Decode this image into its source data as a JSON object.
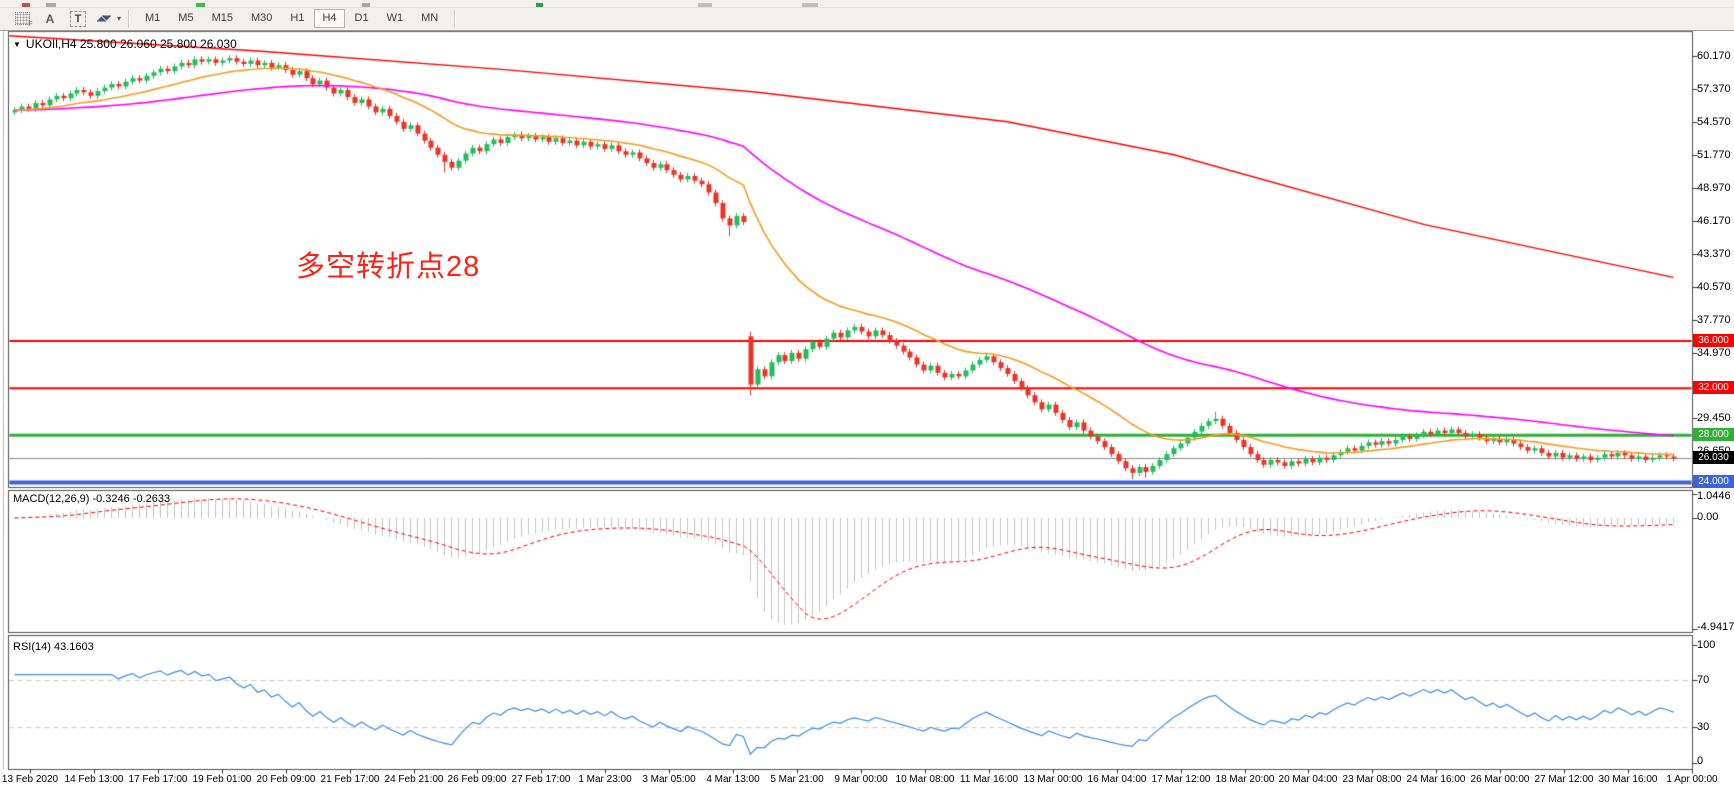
{
  "toolbar": {
    "icons": [
      {
        "name": "grid-f-icon",
        "label": "F"
      },
      {
        "name": "font-a-icon",
        "label": "A"
      },
      {
        "name": "text-label-icon",
        "label": "T"
      },
      {
        "name": "arrange-arrows-icon",
        "label": ""
      }
    ],
    "timeframes": [
      "M1",
      "M5",
      "M15",
      "M30",
      "H1",
      "H4",
      "D1",
      "W1",
      "MN"
    ],
    "active_timeframe": "H4"
  },
  "chart": {
    "title": "UKOIl,H4 25.800 26.060 25.800 26.030",
    "symbol": "UKOIl",
    "timeframe": "H4",
    "ohlc": {
      "open": "25.800",
      "high": "26.060",
      "low": "25.800",
      "close": "26.030"
    },
    "annotation": {
      "text": "多空转折点28",
      "color": "#ff2115"
    },
    "price_ticks": [
      "60.170",
      "57.370",
      "54.570",
      "51.770",
      "48.970",
      "46.170",
      "43.370",
      "40.570",
      "37.770",
      "34.970",
      "29.450",
      "26.650",
      "23.850"
    ],
    "hlines": [
      {
        "label": "36.000",
        "value": 36.0,
        "color": "#fe0000",
        "width": 2
      },
      {
        "label": "32.000",
        "value": 32.0,
        "color": "#fe0000",
        "width": 2
      },
      {
        "label": "28.000",
        "value": 28.0,
        "color": "#2eb135",
        "width": 3
      },
      {
        "label": "24.000",
        "value": 24.0,
        "color": "#3d63d8",
        "width": 4
      }
    ],
    "current_price": {
      "label": "26.030",
      "value": 26.03,
      "badge_bg": "#000000",
      "line_color": "#8a8a8a"
    }
  },
  "macd_pane": {
    "label": "MACD(12,26,9) -0.3246 -0.2633",
    "fast": 12,
    "slow": 26,
    "signal_period": 9,
    "main_value": -0.3246,
    "signal_value": -0.2633,
    "scale_max": "1.0446",
    "scale_zero": "0.00",
    "scale_min": "-4.9417",
    "histogram_color": "#c3c3c3",
    "signal_color": "#fe0000"
  },
  "rsi_pane": {
    "label": "RSI(14) 43.1603",
    "period": 14,
    "value": 43.1603,
    "levels": [
      70,
      30
    ],
    "scale_labels": [
      "100",
      "70",
      "30",
      "0"
    ],
    "line_color": "#3f8ede"
  },
  "chart_data": {
    "type": "candlestick",
    "symbol_timeframe": "UKOIl H4",
    "bull_color": "#23bd5f",
    "bear_color": "#ea3427",
    "first_open": 55.4,
    "wick": 0.25,
    "closes": [
      55.6,
      55.9,
      55.7,
      56.2,
      56.0,
      56.5,
      56.8,
      56.6,
      57.0,
      57.3,
      57.1,
      56.8,
      57.2,
      57.5,
      57.8,
      57.6,
      58.0,
      58.3,
      58.1,
      58.5,
      58.8,
      59.1,
      58.9,
      59.3,
      59.6,
      59.4,
      59.9,
      59.7,
      59.9,
      59.6,
      59.8,
      60.0,
      59.7,
      59.5,
      59.8,
      59.4,
      59.6,
      59.2,
      59.4,
      59.0,
      58.6,
      58.9,
      58.3,
      57.8,
      58.1,
      57.5,
      57.0,
      57.3,
      56.7,
      56.2,
      56.5,
      55.9,
      55.4,
      55.7,
      55.1,
      54.6,
      54.0,
      54.3,
      53.6,
      53.0,
      52.4,
      51.8,
      51.2,
      50.7,
      51.3,
      51.9,
      52.4,
      52.1,
      52.7,
      53.1,
      52.8,
      53.3,
      53.5,
      53.2,
      53.4,
      53.1,
      53.3,
      52.9,
      53.2,
      52.8,
      53.0,
      52.6,
      52.9,
      52.5,
      52.7,
      52.3,
      52.6,
      52.1,
      51.8,
      52.0,
      51.5,
      51.1,
      50.7,
      51.0,
      50.5,
      50.1,
      49.7,
      50.0,
      49.6,
      49.3,
      48.6,
      47.7,
      46.4,
      45.8,
      46.6,
      46.1,
      32.3,
      33.6,
      33.0,
      34.2,
      34.8,
      34.3,
      35.0,
      34.5,
      35.3,
      35.9,
      35.5,
      36.2,
      36.7,
      36.3,
      36.9,
      37.2,
      36.8,
      36.4,
      36.9,
      36.5,
      36.0,
      35.6,
      35.1,
      34.6,
      34.0,
      33.5,
      33.9,
      33.3,
      32.9,
      33.2,
      33.0,
      33.5,
      34.0,
      34.4,
      34.7,
      34.2,
      33.7,
      33.2,
      32.6,
      32.0,
      31.4,
      30.8,
      30.2,
      30.6,
      29.9,
      29.3,
      28.7,
      29.1,
      28.4,
      27.9,
      27.5,
      27.0,
      26.4,
      25.8,
      25.2,
      24.8,
      25.3,
      24.9,
      25.4,
      25.9,
      26.4,
      26.9,
      27.3,
      27.8,
      28.3,
      28.8,
      29.2,
      29.4,
      28.8,
      28.2,
      27.6,
      27.0,
      26.4,
      25.9,
      25.5,
      25.9,
      25.7,
      25.4,
      25.8,
      25.6,
      26.0,
      25.7,
      26.1,
      25.9,
      26.3,
      26.6,
      26.9,
      26.7,
      27.1,
      27.4,
      27.2,
      27.5,
      27.3,
      27.6,
      27.9,
      27.7,
      28.0,
      28.3,
      28.1,
      28.4,
      28.2,
      28.5,
      28.2,
      27.9,
      28.1,
      27.8,
      27.5,
      27.7,
      27.4,
      27.6,
      27.3,
      27.0,
      26.7,
      26.9,
      26.5,
      26.2,
      26.5,
      26.1,
      26.3,
      26.0,
      26.2,
      25.9,
      26.1,
      26.4,
      26.2,
      26.5,
      26.3,
      26.0,
      26.2,
      25.9,
      26.1,
      26.3,
      26.2,
      26.03
    ],
    "overrides": {
      "62": {
        "l": 50.3
      },
      "103": {
        "l": 44.9
      },
      "106": {
        "o": 36.4,
        "h": 36.8,
        "l": 31.4
      },
      "161": {
        "l": 24.3
      },
      "163": {
        "l": 24.4
      },
      "173": {
        "h": 30.0
      }
    },
    "moving_averages": [
      {
        "name": "fast-ma",
        "period": 21,
        "color": "#f59d20"
      },
      {
        "name": "medium-ma",
        "period": 75,
        "color": "#ff00ff"
      }
    ],
    "trendline": {
      "color": "#fe0000",
      "points": [
        [
          0,
          61.9
        ],
        [
          0.15,
          60.6
        ],
        [
          0.3,
          59.0
        ],
        [
          0.45,
          57.1
        ],
        [
          0.6,
          54.6
        ],
        [
          0.7,
          51.8
        ],
        [
          0.85,
          45.9
        ],
        [
          1,
          41.4
        ]
      ]
    },
    "macd": {
      "fast": 12,
      "slow": 26,
      "signal": 9,
      "range": [
        -4.9417,
        1.0446
      ]
    },
    "rsi": {
      "period": 14,
      "range": [
        0,
        100
      ],
      "levels": [
        70,
        30
      ]
    },
    "dates": [
      "13 Feb 2020",
      "14 Feb 13:00",
      "17 Feb 17:00",
      "19 Feb 01:00",
      "20 Feb 09:00",
      "21 Feb 17:00",
      "24 Feb 21:00",
      "26 Feb 09:00",
      "27 Feb 17:00",
      "1 Mar 23:00",
      "3 Mar 05:00",
      "4 Mar 13:00",
      "5 Mar 21:00",
      "9 Mar 00:00",
      "10 Mar 08:00",
      "11 Mar 16:00",
      "13 Mar 00:00",
      "16 Mar 04:00",
      "17 Mar 12:00",
      "18 Mar 20:00",
      "20 Mar 04:00",
      "23 Mar 08:00",
      "24 Mar 16:00",
      "26 Mar 00:00",
      "27 Mar 12:00",
      "30 Mar 16:00",
      "1 Apr 00:00"
    ]
  }
}
